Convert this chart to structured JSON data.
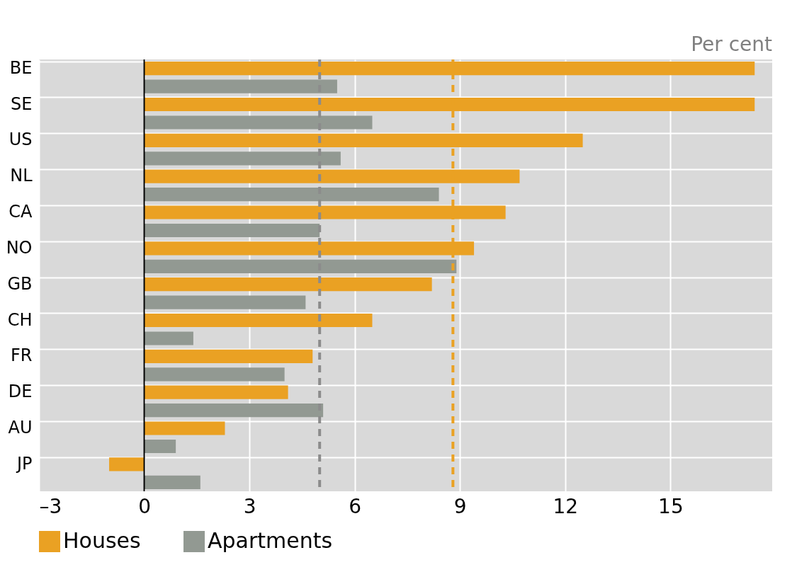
{
  "chart_data": {
    "type": "bar",
    "orientation": "horizontal",
    "categories": [
      "BE",
      "SE",
      "US",
      "NL",
      "CA",
      "NO",
      "GB",
      "CH",
      "FR",
      "DE",
      "AU",
      "JP"
    ],
    "series": [
      {
        "name": "Houses",
        "color": "#eaa123",
        "values": [
          17.4,
          17.4,
          12.5,
          10.7,
          10.3,
          9.4,
          8.2,
          6.5,
          4.8,
          4.1,
          2.3,
          -1.0
        ]
      },
      {
        "name": "Apartments",
        "color": "#929992",
        "values": [
          5.5,
          6.5,
          5.6,
          8.4,
          5.0,
          8.9,
          4.6,
          1.4,
          4.0,
          5.1,
          0.9,
          1.6
        ]
      }
    ],
    "xlim": [
      -3,
      17.9
    ],
    "xticks": [
      {
        "value": -3,
        "label": "–3"
      },
      0,
      3,
      6,
      9,
      12,
      15
    ],
    "ref_lines": [
      {
        "axis": "x",
        "value": 5.0,
        "color": "#8c8c8c",
        "line_style": "dashed"
      },
      {
        "axis": "x",
        "value": 8.8,
        "color": "#eaa123",
        "line_style": "dashed"
      }
    ],
    "annotations": [
      "Per cent"
    ],
    "grid": true,
    "legend": "bottom"
  }
}
